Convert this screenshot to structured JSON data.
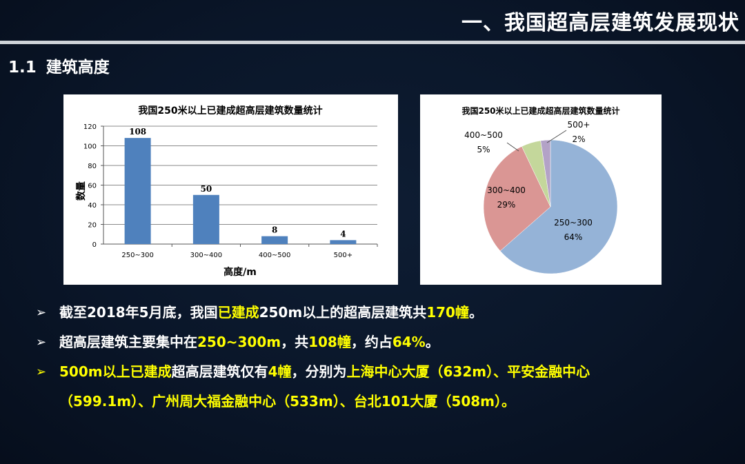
{
  "slide": {
    "title": "一、我国超高层建筑发展现状",
    "section_number": "1.1",
    "section_title": "建筑高度"
  },
  "colors": {
    "background": "#0a1629",
    "highlight": "#ffff00",
    "bar": "#4f81bd",
    "pie": [
      "#95b3d7",
      "#da9694",
      "#c4d79b",
      "#b3a2c7"
    ]
  },
  "chart_data": [
    {
      "type": "bar",
      "title": "我国250米以上已建成超高层建筑数量统计",
      "xlabel": "高度/m",
      "ylabel": "数量",
      "categories": [
        "250~300",
        "300~400",
        "400~500",
        "500+"
      ],
      "values": [
        108,
        50,
        8,
        4
      ],
      "data_labels": [
        "108",
        "50",
        "8",
        "4"
      ],
      "ylim": [
        0,
        120
      ],
      "yticks": [
        "0",
        "20",
        "40",
        "60",
        "80",
        "100",
        "120"
      ],
      "grid": true
    },
    {
      "type": "pie",
      "title": "我国250米以上已建成超高层建筑数量统计",
      "slices": [
        {
          "label": "250~300",
          "pct": "64%",
          "value": 108
        },
        {
          "label": "300~400",
          "pct": "29%",
          "value": 50
        },
        {
          "label": "400~500",
          "pct": "5%",
          "value": 8
        },
        {
          "label": "500+",
          "pct": "2%",
          "value": 4
        }
      ]
    }
  ],
  "bullets": [
    {
      "segments": [
        {
          "text": "截至2018年5月底，我国",
          "hl": false
        },
        {
          "text": "已建成",
          "hl": true
        },
        {
          "text": "250m以上的超高层建筑共",
          "hl": false
        },
        {
          "text": "170幢",
          "hl": true
        },
        {
          "text": "。",
          "hl": false
        }
      ]
    },
    {
      "segments": [
        {
          "text": "超高层建筑主要集中在",
          "hl": false
        },
        {
          "text": "250~300m",
          "hl": true
        },
        {
          "text": "，共",
          "hl": false
        },
        {
          "text": "108幢",
          "hl": true
        },
        {
          "text": "，约占",
          "hl": false
        },
        {
          "text": "64%",
          "hl": true
        },
        {
          "text": "。",
          "hl": false
        }
      ]
    },
    {
      "segments": [
        {
          "text": "500m以上已建成",
          "hl": true
        },
        {
          "text": "超高层建筑仅有",
          "hl": false
        },
        {
          "text": "4幢",
          "hl": true
        },
        {
          "text": "，分别为",
          "hl": false
        },
        {
          "text": "上海中心大厦（632m）、平安金融中心",
          "hl": true
        }
      ],
      "continuation": "（599.1m）、广州周大福金融中心（533m）、台北101大厦（508m）。"
    }
  ]
}
